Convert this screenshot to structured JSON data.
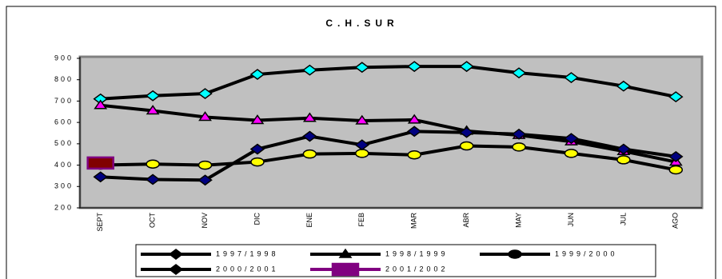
{
  "chart_data": {
    "type": "line",
    "title": "C.H.SUR",
    "categories": [
      "SEPT",
      "OCT",
      "NOV",
      "DIC",
      "ENE",
      "FEB",
      "MAR",
      "ABR",
      "MAY",
      "JUN",
      "JUL",
      "AGO"
    ],
    "series": [
      {
        "name": "1997/1998",
        "color": "#00ffff",
        "line_color": "#000000",
        "marker": "diamond",
        "values": [
          710,
          725,
          735,
          825,
          845,
          858,
          862,
          862,
          832,
          810,
          770,
          720
        ]
      },
      {
        "name": "1998/1999",
        "color": "#ff00ff",
        "line_color": "#000000",
        "marker": "triangle",
        "values": [
          680,
          655,
          625,
          610,
          620,
          608,
          612,
          560,
          540,
          510,
          465,
          415
        ]
      },
      {
        "name": "1999/2000",
        "color": "#ffff00",
        "line_color": "#000000",
        "marker": "circle",
        "values": [
          400,
          405,
          400,
          415,
          452,
          455,
          448,
          490,
          485,
          455,
          425,
          378
        ]
      },
      {
        "name": "2000/2001",
        "color": "#000080",
        "line_color": "#000000",
        "marker": "diamond",
        "values": [
          345,
          333,
          330,
          475,
          535,
          495,
          558,
          553,
          545,
          525,
          475,
          440
        ]
      },
      {
        "name": "2001/2002",
        "color": "#800000",
        "line_color": "#800080",
        "marker": "square",
        "values": [
          410,
          null,
          null,
          null,
          null,
          null,
          null,
          null,
          null,
          null,
          null,
          null
        ]
      }
    ],
    "ylim": [
      200,
      900
    ],
    "yticks": [
      200,
      300,
      400,
      500,
      600,
      700,
      800,
      900
    ],
    "grid": false,
    "plot_background": "#c0c0c0",
    "legend": "bottom"
  }
}
